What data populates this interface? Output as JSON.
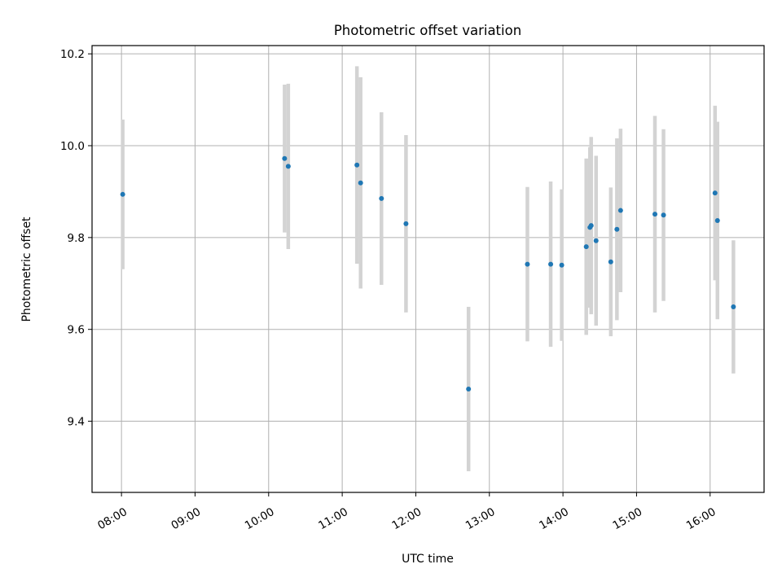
{
  "chart_data": {
    "type": "scatter",
    "title": "Photometric offset variation",
    "xlabel": "UTC time",
    "ylabel": "Photometric offset",
    "grid": true,
    "legend": "none",
    "xlim": [
      "07:36",
      "16:44"
    ],
    "ylim": [
      9.245,
      10.218
    ],
    "x_ticks": [
      "08:00",
      "09:00",
      "10:00",
      "11:00",
      "12:00",
      "13:00",
      "14:00",
      "15:00",
      "16:00"
    ],
    "y_ticks": [
      9.4,
      9.6,
      9.8,
      10.0,
      10.2
    ],
    "y_tick_labels": [
      "9.4",
      "9.6",
      "9.8",
      "10.0",
      "10.2"
    ],
    "colors": {
      "point": "#1f77b4",
      "errorbar": "#d3d3d3",
      "grid": "#b0b0b0"
    },
    "series": [
      {
        "points": [
          {
            "x": "08:01",
            "y": 9.894,
            "err": 0.163
          },
          {
            "x": "10:13",
            "y": 9.972,
            "err": 0.161
          },
          {
            "x": "10:16",
            "y": 9.955,
            "err": 0.18
          },
          {
            "x": "11:12",
            "y": 9.958,
            "err": 0.215
          },
          {
            "x": "11:15",
            "y": 9.919,
            "err": 0.23
          },
          {
            "x": "11:32",
            "y": 9.885,
            "err": 0.188
          },
          {
            "x": "11:52",
            "y": 9.83,
            "err": 0.193
          },
          {
            "x": "12:43",
            "y": 9.47,
            "err": 0.179
          },
          {
            "x": "13:31",
            "y": 9.742,
            "err": 0.168
          },
          {
            "x": "13:50",
            "y": 9.742,
            "err": 0.18
          },
          {
            "x": "13:59",
            "y": 9.74,
            "err": 0.165
          },
          {
            "x": "14:19",
            "y": 9.78,
            "err": 0.192
          },
          {
            "x": "14:22",
            "y": 9.822,
            "err": 0.175
          },
          {
            "x": "14:23",
            "y": 9.826,
            "err": 0.193
          },
          {
            "x": "14:27",
            "y": 9.793,
            "err": 0.185
          },
          {
            "x": "14:39",
            "y": 9.747,
            "err": 0.162
          },
          {
            "x": "14:44",
            "y": 9.818,
            "err": 0.198
          },
          {
            "x": "14:47",
            "y": 9.859,
            "err": 0.178
          },
          {
            "x": "15:15",
            "y": 9.851,
            "err": 0.214
          },
          {
            "x": "15:22",
            "y": 9.849,
            "err": 0.187
          },
          {
            "x": "16:04",
            "y": 9.897,
            "err": 0.19
          },
          {
            "x": "16:06",
            "y": 9.837,
            "err": 0.215
          },
          {
            "x": "16:19",
            "y": 9.649,
            "err": 0.145
          }
        ]
      }
    ]
  }
}
